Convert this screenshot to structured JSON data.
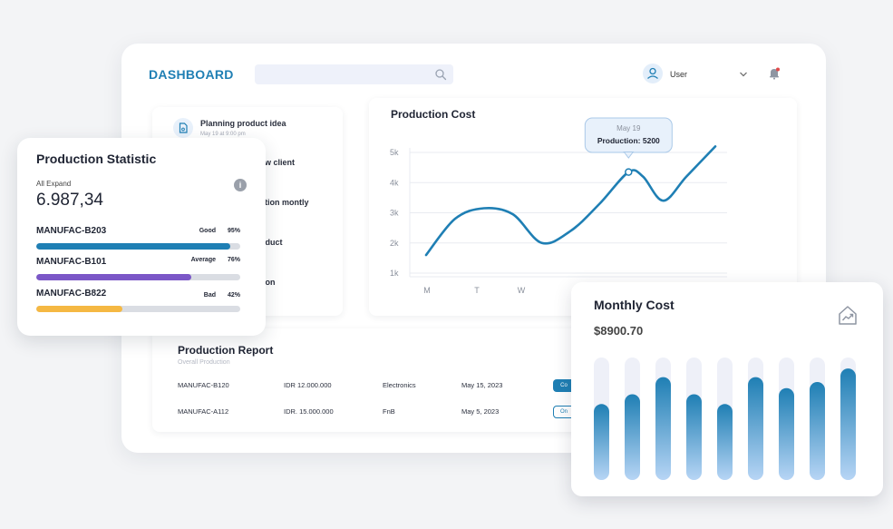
{
  "header": {
    "logo": "DASHBOARD",
    "user_label": "User"
  },
  "activities": [
    {
      "label": "Planning product idea",
      "date": "May 19 at 9:00 pm"
    },
    {
      "label": "ew client"
    },
    {
      "label": "ction montly"
    },
    {
      "label": "oduct"
    },
    {
      "label": "tion"
    }
  ],
  "production_cost": {
    "title": "Production Cost",
    "tooltip_date": "May 19",
    "tooltip_value": "Production: 5200"
  },
  "chart_data": [
    {
      "type": "line",
      "title": "Production Cost",
      "y_ticks": [
        "5k",
        "4k",
        "3k",
        "2k",
        "1k"
      ],
      "x_ticks": [
        "M",
        "T",
        "W"
      ],
      "ylim": [
        1000,
        5000
      ],
      "grid": true,
      "series": [
        {
          "x": [
            0,
            0.5,
            1,
            1.5,
            2,
            2.5,
            3,
            3.5,
            3.75,
            4.1,
            4.5,
            5
          ],
          "values": [
            1600,
            2800,
            3150,
            2950,
            2000,
            2400,
            3300,
            4350,
            4200,
            3400,
            4200,
            5200
          ]
        }
      ],
      "highlight": {
        "label": "May 19",
        "value": 5200
      }
    },
    {
      "type": "bar",
      "title": "Monthly Cost",
      "values": [
        62,
        70,
        84,
        70,
        62,
        84,
        75,
        80,
        91
      ],
      "ylim": [
        0,
        100
      ]
    }
  ],
  "production_statistic": {
    "title": "Production Statistic",
    "subtitle": "All Expand",
    "value": "6.987,34",
    "rows": [
      {
        "name": "MANUFAC-B203",
        "status": "Good",
        "percent_label": "95%",
        "percent": 95,
        "color": "#1f7fb4"
      },
      {
        "name": "MANUFAC-B101",
        "status": "Average",
        "percent_label": "76%",
        "percent": 76,
        "color": "#7b57c7"
      },
      {
        "name": "MANUFAC-B822",
        "status": "Bad",
        "percent_label": "42%",
        "percent": 42,
        "color": "#f5b843"
      }
    ]
  },
  "production_report": {
    "title": "Production Report",
    "subtitle": "Overall Production",
    "rows": [
      {
        "code": "MANUFAC-B120",
        "amount": "IDR 12.000.000",
        "category": "Electronics",
        "date": "May 15, 2023",
        "status": "Co",
        "style": "filled"
      },
      {
        "code": "MANUFAC-A112",
        "amount": "IDR. 15.000.000",
        "category": "FnB",
        "date": "May 5, 2023",
        "status": "On",
        "style": "outline"
      }
    ]
  },
  "monthly_cost": {
    "title": "Monthly Cost",
    "value": "$8900.70"
  },
  "icons": [
    "search-icon",
    "user-icon",
    "chevron-down-icon",
    "bell-icon",
    "document-icon",
    "info-icon",
    "trend-up-icon"
  ],
  "colors": {
    "accent": "#1f7fb4",
    "purple": "#7b57c7",
    "yellow": "#f5b843"
  }
}
